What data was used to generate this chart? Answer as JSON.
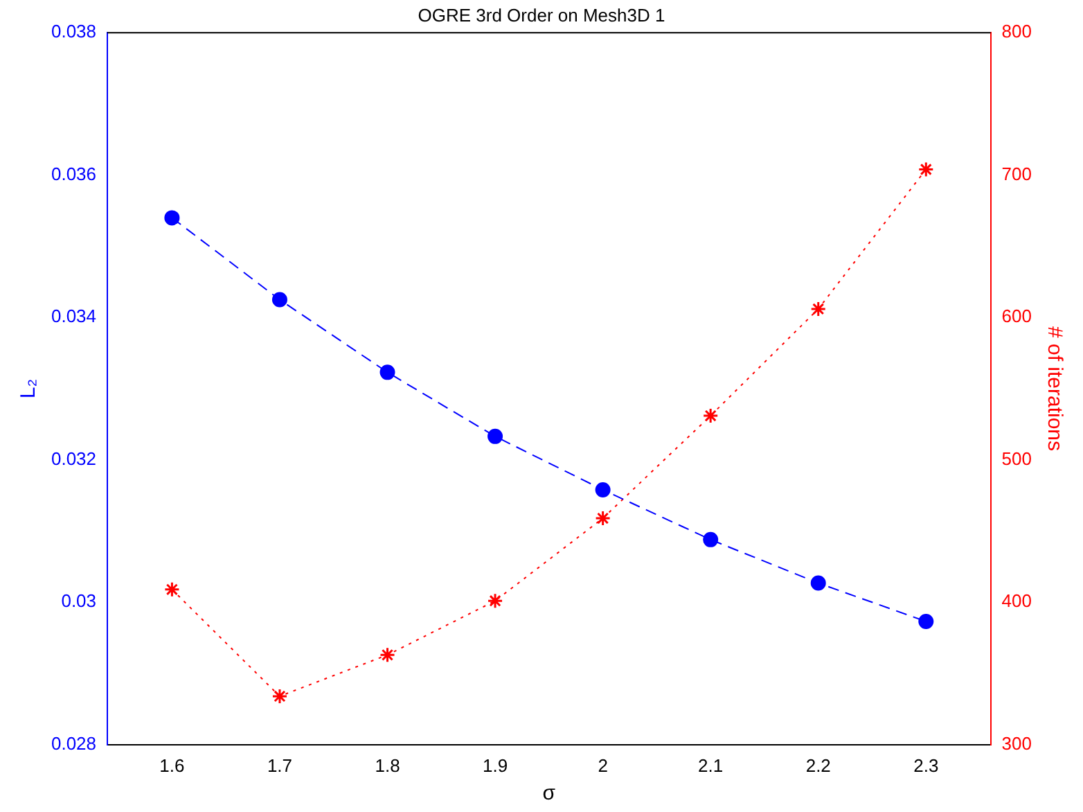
{
  "chart_data": {
    "type": "line",
    "title": "OGRE 3rd Order on Mesh3D 1",
    "xlabel": "σ",
    "ylabel": "L₂",
    "y2label": "# of iterations",
    "x": [
      1.6,
      1.7,
      1.8,
      1.9,
      2.0,
      2.1,
      2.2,
      2.3
    ],
    "series": [
      {
        "color": "#0000ff",
        "marker": "circle",
        "line_style": "dashed",
        "values": [
          0.0354,
          0.03425,
          0.03323,
          0.03233,
          0.03158,
          0.03088,
          0.03027,
          0.02973
        ]
      },
      {
        "color": "#ff0000",
        "marker": "cross",
        "line_style": "dotted",
        "axis": "y2",
        "values": [
          409,
          334,
          363,
          401,
          459,
          531,
          606,
          704
        ]
      }
    ],
    "xlim": [
      1.54,
      2.36
    ],
    "xticks": [
      1.6,
      1.7,
      1.8,
      1.9,
      2,
      2.1,
      2.2,
      2.3
    ],
    "ylim": [
      0.028,
      0.038
    ],
    "yticks": [
      0.028,
      0.03,
      0.032,
      0.034,
      0.036,
      0.038
    ],
    "y2lim": [
      300,
      800
    ],
    "y2ticks": [
      300,
      400,
      500,
      600,
      700,
      800
    ],
    "grid": false,
    "legend": false
  }
}
